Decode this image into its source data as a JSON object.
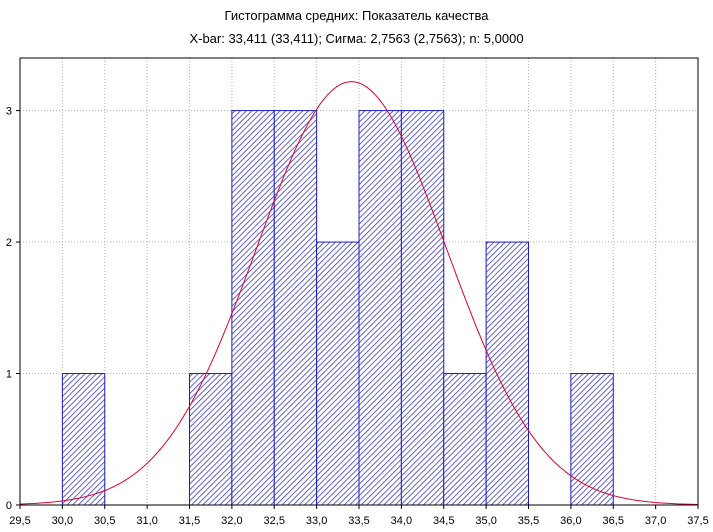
{
  "chart_data": {
    "type": "bar",
    "title": "Гистограмма средних: Показатель качества",
    "subtitle": "X-bar: 33,411 (33,411); Сигма: 2,7563 (2,7563); n: 5,0000",
    "xlabel": "",
    "ylabel": "",
    "xlim": [
      29.5,
      37.5
    ],
    "ylim": [
      0,
      3.4
    ],
    "x_ticks": [
      29.5,
      30.0,
      30.5,
      31.0,
      31.5,
      32.0,
      32.5,
      33.0,
      33.5,
      34.0,
      34.5,
      35.0,
      35.5,
      36.0,
      36.5,
      37.0,
      37.5
    ],
    "x_tick_labels": [
      "29,5",
      "30,0",
      "30,5",
      "31,0",
      "31,5",
      "32,0",
      "32,5",
      "33,0",
      "33,5",
      "34,0",
      "34,5",
      "35,0",
      "35,5",
      "36,0",
      "36,5",
      "37,0",
      "37,5"
    ],
    "y_ticks": [
      0,
      1,
      2,
      3
    ],
    "y_tick_labels": [
      "0",
      "1",
      "2",
      "3"
    ],
    "grid": true,
    "bin_width": 0.5,
    "bins": [
      {
        "start": 30.0,
        "count": 1
      },
      {
        "start": 31.5,
        "count": 1
      },
      {
        "start": 32.0,
        "count": 3
      },
      {
        "start": 32.5,
        "count": 3
      },
      {
        "start": 33.0,
        "count": 2
      },
      {
        "start": 33.5,
        "count": 3
      },
      {
        "start": 34.0,
        "count": 3
      },
      {
        "start": 34.5,
        "count": 1
      },
      {
        "start": 35.0,
        "count": 2
      },
      {
        "start": 36.0,
        "count": 1
      }
    ],
    "normal_curve": {
      "mean": 33.411,
      "peak": 3.22,
      "sd": 1.12
    },
    "colors": {
      "bar_stroke": "#1c1cc8",
      "hatch": "#3a3ac8",
      "curve": "#e00030",
      "grid": "#b0b0b0"
    }
  }
}
